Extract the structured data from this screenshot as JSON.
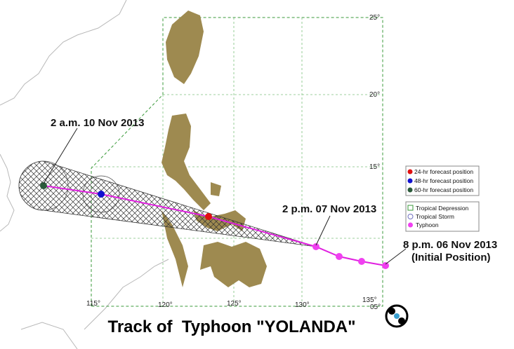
{
  "title": "Track of  Typhoon \"YOLANDA\"",
  "annotations": [
    "2 a.m. 10 Nov 2013",
    "2 p.m. 07 Nov 2013",
    "8 p.m. 06 Nov 2013",
    "(Initial Position)"
  ],
  "latitude_labels": [
    "25°",
    "20°",
    "15°",
    "05°"
  ],
  "longitude_labels": [
    "115°",
    "120°",
    "125°",
    "130°",
    "135°"
  ],
  "forecast_legend": [
    "24-hr forecast position",
    "48-hr forecast position",
    "60-hr forecast position"
  ],
  "intensity_legend": [
    "Tropical Depression",
    "Tropical Storm",
    "Typhoon"
  ]
}
